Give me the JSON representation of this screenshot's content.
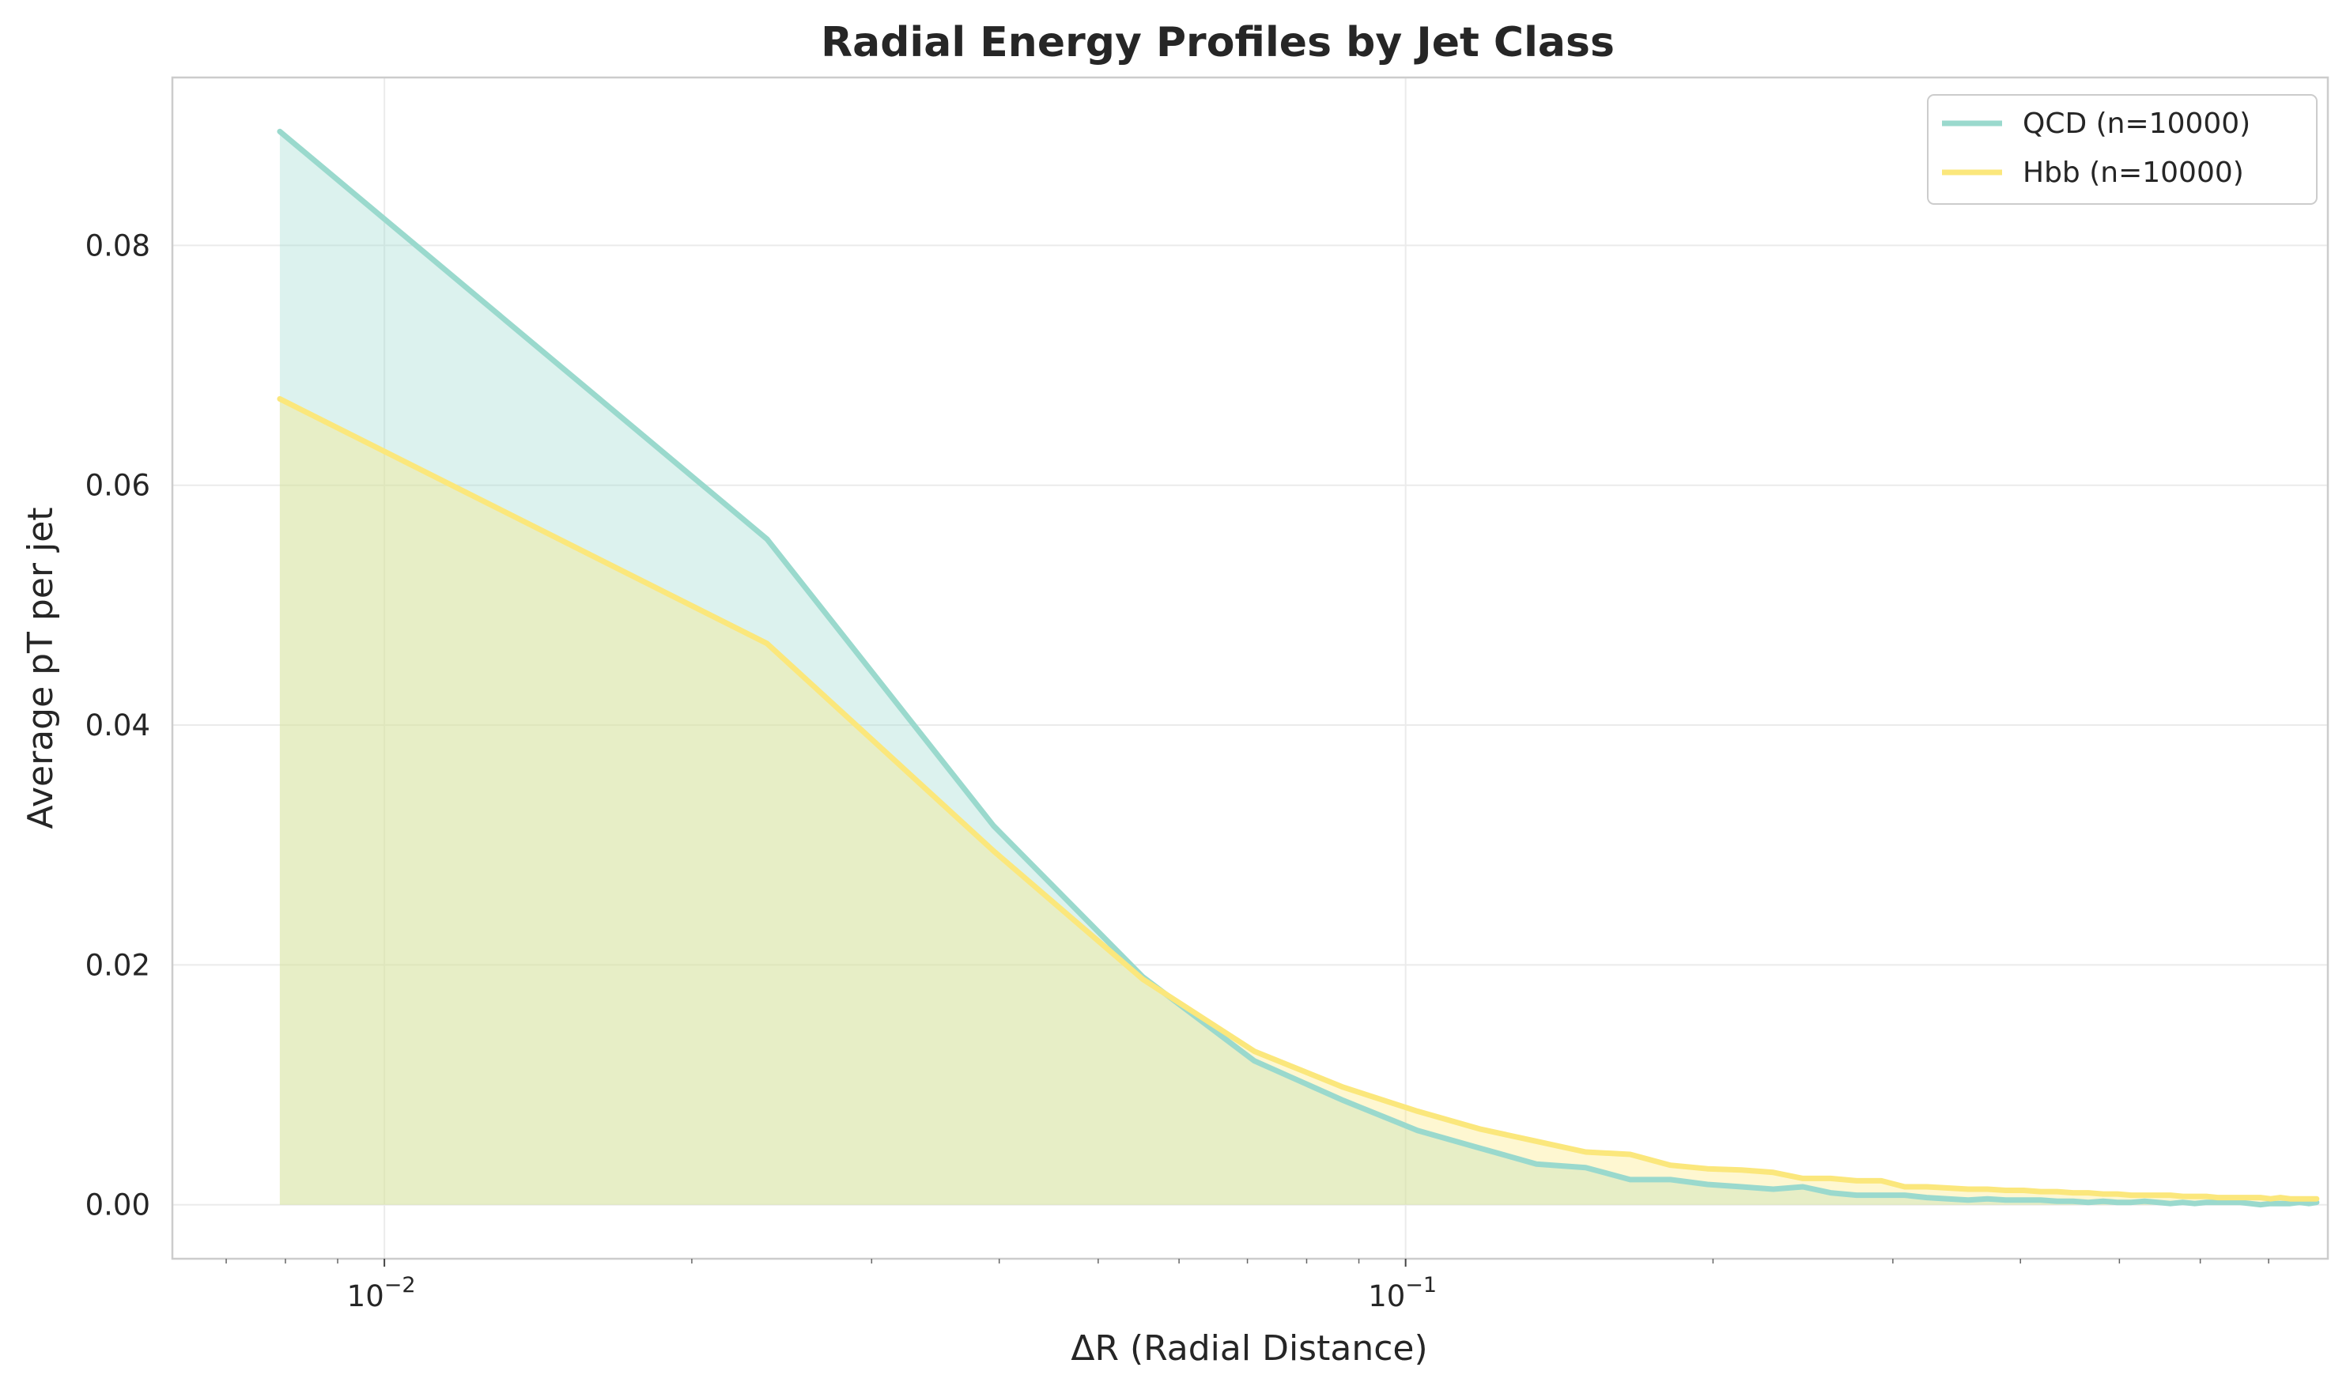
{
  "chart_data": {
    "type": "line",
    "title": "Radial Energy Profiles by Jet Class",
    "xlabel": "ΔR (Radial Distance)",
    "ylabel": "Average pT per jet",
    "xscale": "log",
    "xlim": [
      0.0062,
      0.8
    ],
    "ylim": [
      -0.0045,
      0.094
    ],
    "grid": true,
    "fill_under": true,
    "legend_position": "top-right",
    "x_ticks": [
      {
        "value": 0.01,
        "base": "10",
        "exp": "−2"
      },
      {
        "value": 0.1,
        "base": "10",
        "exp": "−1"
      }
    ],
    "y_ticks": [
      {
        "value": 0.0,
        "label": "0.00"
      },
      {
        "value": 0.02,
        "label": "0.02"
      },
      {
        "value": 0.04,
        "label": "0.04"
      },
      {
        "value": 0.06,
        "label": "0.06"
      },
      {
        "value": 0.08,
        "label": "0.08"
      }
    ],
    "series": [
      {
        "name": "QCD (n=10000)",
        "color": "#9ad9cd",
        "x": [
          0.0079,
          0.0237,
          0.0395,
          0.0553,
          0.0711,
          0.0869,
          0.1027,
          0.1185,
          0.1343,
          0.1501,
          0.1659,
          0.1817,
          0.1975,
          0.2133,
          0.2291,
          0.2449,
          0.2607,
          0.2765,
          0.2923,
          0.3081,
          0.3239,
          0.3397,
          0.3555,
          0.3713,
          0.3871,
          0.4029,
          0.4187,
          0.4345,
          0.4503,
          0.4661,
          0.4819,
          0.4977,
          0.5135,
          0.5293,
          0.5451,
          0.5609,
          0.5767,
          0.5925,
          0.6083,
          0.6241,
          0.6399,
          0.6557,
          0.6715,
          0.6873,
          0.7031,
          0.7189,
          0.7347,
          0.7505,
          0.7663,
          0.78
        ],
        "values": [
          0.0895,
          0.0555,
          0.0316,
          0.019,
          0.012,
          0.0087,
          0.0062,
          0.0047,
          0.0034,
          0.0031,
          0.0021,
          0.0021,
          0.0017,
          0.0015,
          0.0013,
          0.0015,
          0.001,
          0.0008,
          0.0008,
          0.0008,
          0.0006,
          0.0005,
          0.0004,
          0.0005,
          0.0004,
          0.0004,
          0.0004,
          0.0003,
          0.0003,
          0.0002,
          0.0003,
          0.0002,
          0.0002,
          0.0003,
          0.0002,
          0.0001,
          0.0002,
          0.0001,
          0.0002,
          0.0002,
          0.0002,
          0.0002,
          0.0001,
          0.0,
          0.0001,
          0.0001,
          0.0001,
          0.0002,
          0.0001,
          0.0002
        ]
      },
      {
        "name": "Hbb (n=10000)",
        "color": "#fbe77c",
        "x": [
          0.0079,
          0.0237,
          0.0395,
          0.0553,
          0.0711,
          0.0869,
          0.1027,
          0.1185,
          0.1343,
          0.1501,
          0.1659,
          0.1817,
          0.1975,
          0.2133,
          0.2291,
          0.2449,
          0.2607,
          0.2765,
          0.2923,
          0.3081,
          0.3239,
          0.3397,
          0.3555,
          0.3713,
          0.3871,
          0.4029,
          0.4187,
          0.4345,
          0.4503,
          0.4661,
          0.4819,
          0.4977,
          0.5135,
          0.5293,
          0.5451,
          0.5609,
          0.5767,
          0.5925,
          0.6083,
          0.6241,
          0.6399,
          0.6557,
          0.6715,
          0.6873,
          0.7031,
          0.7189,
          0.7347,
          0.7505,
          0.7663,
          0.78
        ],
        "values": [
          0.0672,
          0.0468,
          0.0295,
          0.0188,
          0.0128,
          0.0098,
          0.0078,
          0.0063,
          0.0053,
          0.0044,
          0.0042,
          0.0033,
          0.003,
          0.0029,
          0.0027,
          0.0022,
          0.0022,
          0.002,
          0.002,
          0.0015,
          0.0015,
          0.0014,
          0.0013,
          0.0013,
          0.0012,
          0.0012,
          0.0011,
          0.0011,
          0.001,
          0.001,
          0.0009,
          0.0009,
          0.0008,
          0.0008,
          0.0008,
          0.0008,
          0.0007,
          0.0007,
          0.0007,
          0.0006,
          0.0006,
          0.0006,
          0.0006,
          0.0006,
          0.0005,
          0.0006,
          0.0005,
          0.0005,
          0.0005,
          0.0005
        ]
      }
    ]
  }
}
